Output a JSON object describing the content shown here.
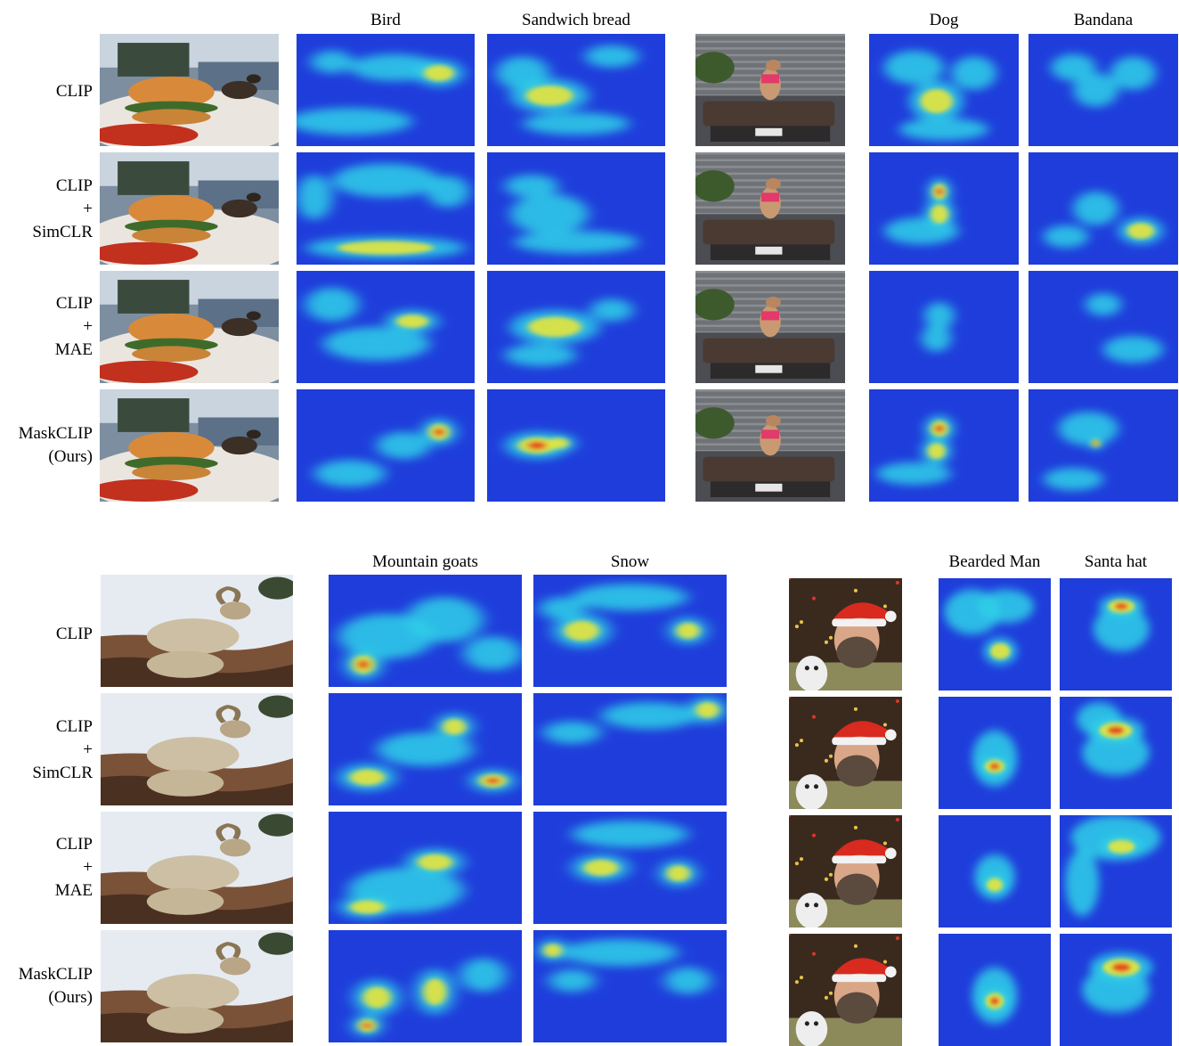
{
  "headers": {
    "bird": "Bird",
    "sandwich": "Sandwich bread",
    "dog": "Dog",
    "bandana": "Bandana",
    "goats": "Mountain goats",
    "snow": "Snow",
    "man": "Bearded Man",
    "hat": "Santa hat"
  },
  "rows": [
    {
      "lines": [
        "CLIP"
      ]
    },
    {
      "lines": [
        "CLIP",
        "+",
        "SimCLR"
      ]
    },
    {
      "lines": [
        "CLIP",
        "+",
        "MAE"
      ]
    },
    {
      "lines": [
        "MaskCLIP",
        "(Ours)"
      ]
    }
  ],
  "colors": {
    "heat_low": "#1a2fd6",
    "heat_mid": "#2fd0e8",
    "heat_warm": "#e8e63a",
    "heat_hot": "#e8361a"
  }
}
